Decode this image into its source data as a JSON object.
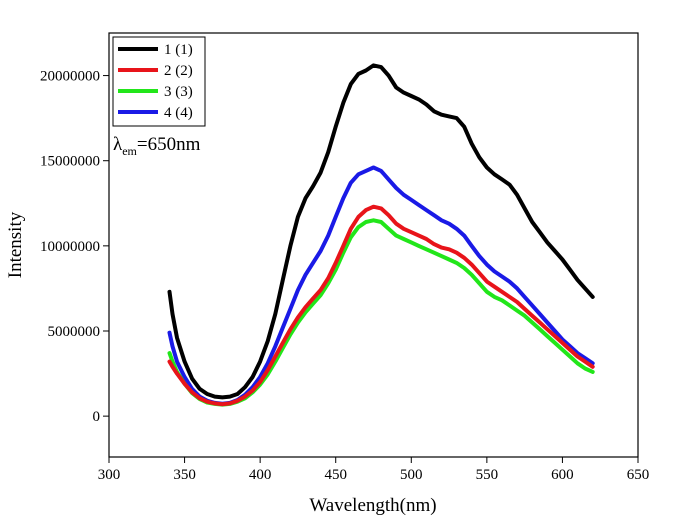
{
  "chart_data": {
    "type": "line",
    "xlabel": "Wavelength(nm)",
    "ylabel": "Intensity",
    "xlim": [
      300,
      650
    ],
    "ylim": [
      -2400000,
      22500000
    ],
    "xticks": [
      300,
      350,
      400,
      450,
      500,
      550,
      600,
      650
    ],
    "yticks": [
      0,
      5000000,
      10000000,
      15000000,
      20000000
    ],
    "ytick_labels": [
      "0",
      "5000000",
      "10000000",
      "15000000",
      "20000000"
    ],
    "grid": false,
    "legend_position": "top-left",
    "annotation": {
      "symbol": "λ",
      "subscript": "em",
      "text": "=650nm"
    },
    "series": [
      {
        "name": "1 (1)",
        "color": "#000000",
        "points": [
          [
            340,
            7300000
          ],
          [
            342,
            6000000
          ],
          [
            345,
            4600000
          ],
          [
            350,
            3200000
          ],
          [
            355,
            2200000
          ],
          [
            360,
            1600000
          ],
          [
            365,
            1300000
          ],
          [
            370,
            1150000
          ],
          [
            375,
            1100000
          ],
          [
            380,
            1150000
          ],
          [
            385,
            1300000
          ],
          [
            390,
            1700000
          ],
          [
            395,
            2300000
          ],
          [
            400,
            3200000
          ],
          [
            405,
            4400000
          ],
          [
            410,
            6000000
          ],
          [
            415,
            8000000
          ],
          [
            420,
            10000000
          ],
          [
            425,
            11700000
          ],
          [
            430,
            12800000
          ],
          [
            435,
            13500000
          ],
          [
            440,
            14300000
          ],
          [
            445,
            15500000
          ],
          [
            450,
            17000000
          ],
          [
            455,
            18400000
          ],
          [
            460,
            19500000
          ],
          [
            465,
            20100000
          ],
          [
            470,
            20300000
          ],
          [
            475,
            20600000
          ],
          [
            480,
            20500000
          ],
          [
            485,
            20000000
          ],
          [
            490,
            19300000
          ],
          [
            495,
            19000000
          ],
          [
            500,
            18800000
          ],
          [
            505,
            18600000
          ],
          [
            510,
            18300000
          ],
          [
            515,
            17900000
          ],
          [
            520,
            17700000
          ],
          [
            525,
            17600000
          ],
          [
            530,
            17500000
          ],
          [
            535,
            17000000
          ],
          [
            540,
            16000000
          ],
          [
            545,
            15200000
          ],
          [
            550,
            14600000
          ],
          [
            555,
            14200000
          ],
          [
            560,
            13900000
          ],
          [
            565,
            13600000
          ],
          [
            570,
            13000000
          ],
          [
            575,
            12200000
          ],
          [
            580,
            11400000
          ],
          [
            585,
            10800000
          ],
          [
            590,
            10200000
          ],
          [
            595,
            9700000
          ],
          [
            600,
            9200000
          ],
          [
            605,
            8600000
          ],
          [
            610,
            8000000
          ],
          [
            615,
            7500000
          ],
          [
            620,
            7000000
          ]
        ]
      },
      {
        "name": "2 (2)",
        "color": "#e8141a",
        "points": [
          [
            340,
            3200000
          ],
          [
            342,
            2900000
          ],
          [
            345,
            2500000
          ],
          [
            350,
            1900000
          ],
          [
            355,
            1400000
          ],
          [
            360,
            1050000
          ],
          [
            365,
            850000
          ],
          [
            370,
            750000
          ],
          [
            375,
            700000
          ],
          [
            380,
            750000
          ],
          [
            385,
            900000
          ],
          [
            390,
            1150000
          ],
          [
            395,
            1500000
          ],
          [
            400,
            2000000
          ],
          [
            405,
            2700000
          ],
          [
            410,
            3500000
          ],
          [
            415,
            4300000
          ],
          [
            420,
            5100000
          ],
          [
            425,
            5800000
          ],
          [
            430,
            6400000
          ],
          [
            435,
            6900000
          ],
          [
            440,
            7400000
          ],
          [
            445,
            8100000
          ],
          [
            450,
            9000000
          ],
          [
            455,
            10000000
          ],
          [
            460,
            11000000
          ],
          [
            465,
            11700000
          ],
          [
            470,
            12100000
          ],
          [
            475,
            12300000
          ],
          [
            480,
            12200000
          ],
          [
            485,
            11800000
          ],
          [
            490,
            11300000
          ],
          [
            495,
            11000000
          ],
          [
            500,
            10800000
          ],
          [
            505,
            10600000
          ],
          [
            510,
            10400000
          ],
          [
            515,
            10100000
          ],
          [
            520,
            9900000
          ],
          [
            525,
            9800000
          ],
          [
            530,
            9600000
          ],
          [
            535,
            9300000
          ],
          [
            540,
            8900000
          ],
          [
            545,
            8400000
          ],
          [
            550,
            7900000
          ],
          [
            555,
            7600000
          ],
          [
            560,
            7300000
          ],
          [
            565,
            7000000
          ],
          [
            570,
            6700000
          ],
          [
            575,
            6300000
          ],
          [
            580,
            5900000
          ],
          [
            585,
            5500000
          ],
          [
            590,
            5100000
          ],
          [
            595,
            4700000
          ],
          [
            600,
            4300000
          ],
          [
            605,
            3900000
          ],
          [
            610,
            3500000
          ],
          [
            615,
            3200000
          ],
          [
            620,
            2900000
          ]
        ]
      },
      {
        "name": "3 (3)",
        "color": "#22e61a",
        "points": [
          [
            340,
            3700000
          ],
          [
            342,
            3200000
          ],
          [
            345,
            2600000
          ],
          [
            350,
            1900000
          ],
          [
            355,
            1350000
          ],
          [
            360,
            1000000
          ],
          [
            365,
            800000
          ],
          [
            370,
            720000
          ],
          [
            375,
            680000
          ],
          [
            380,
            720000
          ],
          [
            385,
            850000
          ],
          [
            390,
            1050000
          ],
          [
            395,
            1400000
          ],
          [
            400,
            1850000
          ],
          [
            405,
            2450000
          ],
          [
            410,
            3200000
          ],
          [
            415,
            4000000
          ],
          [
            420,
            4800000
          ],
          [
            425,
            5500000
          ],
          [
            430,
            6100000
          ],
          [
            435,
            6600000
          ],
          [
            440,
            7100000
          ],
          [
            445,
            7800000
          ],
          [
            450,
            8600000
          ],
          [
            455,
            9600000
          ],
          [
            460,
            10500000
          ],
          [
            465,
            11100000
          ],
          [
            470,
            11400000
          ],
          [
            475,
            11500000
          ],
          [
            480,
            11400000
          ],
          [
            485,
            11000000
          ],
          [
            490,
            10600000
          ],
          [
            495,
            10400000
          ],
          [
            500,
            10200000
          ],
          [
            505,
            10000000
          ],
          [
            510,
            9800000
          ],
          [
            515,
            9600000
          ],
          [
            520,
            9400000
          ],
          [
            525,
            9200000
          ],
          [
            530,
            9000000
          ],
          [
            535,
            8700000
          ],
          [
            540,
            8300000
          ],
          [
            545,
            7800000
          ],
          [
            550,
            7300000
          ],
          [
            555,
            7000000
          ],
          [
            560,
            6800000
          ],
          [
            565,
            6500000
          ],
          [
            570,
            6200000
          ],
          [
            575,
            5900000
          ],
          [
            580,
            5500000
          ],
          [
            585,
            5100000
          ],
          [
            590,
            4700000
          ],
          [
            595,
            4300000
          ],
          [
            600,
            3900000
          ],
          [
            605,
            3500000
          ],
          [
            610,
            3100000
          ],
          [
            615,
            2800000
          ],
          [
            620,
            2600000
          ]
        ]
      },
      {
        "name": "4 (4)",
        "color": "#1a1ae6",
        "points": [
          [
            340,
            4900000
          ],
          [
            342,
            4100000
          ],
          [
            345,
            3200000
          ],
          [
            350,
            2300000
          ],
          [
            355,
            1600000
          ],
          [
            360,
            1150000
          ],
          [
            365,
            900000
          ],
          [
            370,
            780000
          ],
          [
            375,
            730000
          ],
          [
            380,
            780000
          ],
          [
            385,
            950000
          ],
          [
            390,
            1250000
          ],
          [
            395,
            1700000
          ],
          [
            400,
            2300000
          ],
          [
            405,
            3100000
          ],
          [
            410,
            4100000
          ],
          [
            415,
            5200000
          ],
          [
            420,
            6300000
          ],
          [
            425,
            7400000
          ],
          [
            430,
            8300000
          ],
          [
            435,
            9000000
          ],
          [
            440,
            9700000
          ],
          [
            445,
            10600000
          ],
          [
            450,
            11700000
          ],
          [
            455,
            12800000
          ],
          [
            460,
            13700000
          ],
          [
            465,
            14200000
          ],
          [
            470,
            14400000
          ],
          [
            475,
            14600000
          ],
          [
            480,
            14400000
          ],
          [
            485,
            13900000
          ],
          [
            490,
            13400000
          ],
          [
            495,
            13000000
          ],
          [
            500,
            12700000
          ],
          [
            505,
            12400000
          ],
          [
            510,
            12100000
          ],
          [
            515,
            11800000
          ],
          [
            520,
            11500000
          ],
          [
            525,
            11300000
          ],
          [
            530,
            11000000
          ],
          [
            535,
            10600000
          ],
          [
            540,
            10000000
          ],
          [
            545,
            9400000
          ],
          [
            550,
            8900000
          ],
          [
            555,
            8500000
          ],
          [
            560,
            8200000
          ],
          [
            565,
            7900000
          ],
          [
            570,
            7500000
          ],
          [
            575,
            7000000
          ],
          [
            580,
            6500000
          ],
          [
            585,
            6000000
          ],
          [
            590,
            5500000
          ],
          [
            595,
            5000000
          ],
          [
            600,
            4500000
          ],
          [
            605,
            4100000
          ],
          [
            610,
            3700000
          ],
          [
            615,
            3400000
          ],
          [
            620,
            3100000
          ]
        ]
      }
    ]
  }
}
